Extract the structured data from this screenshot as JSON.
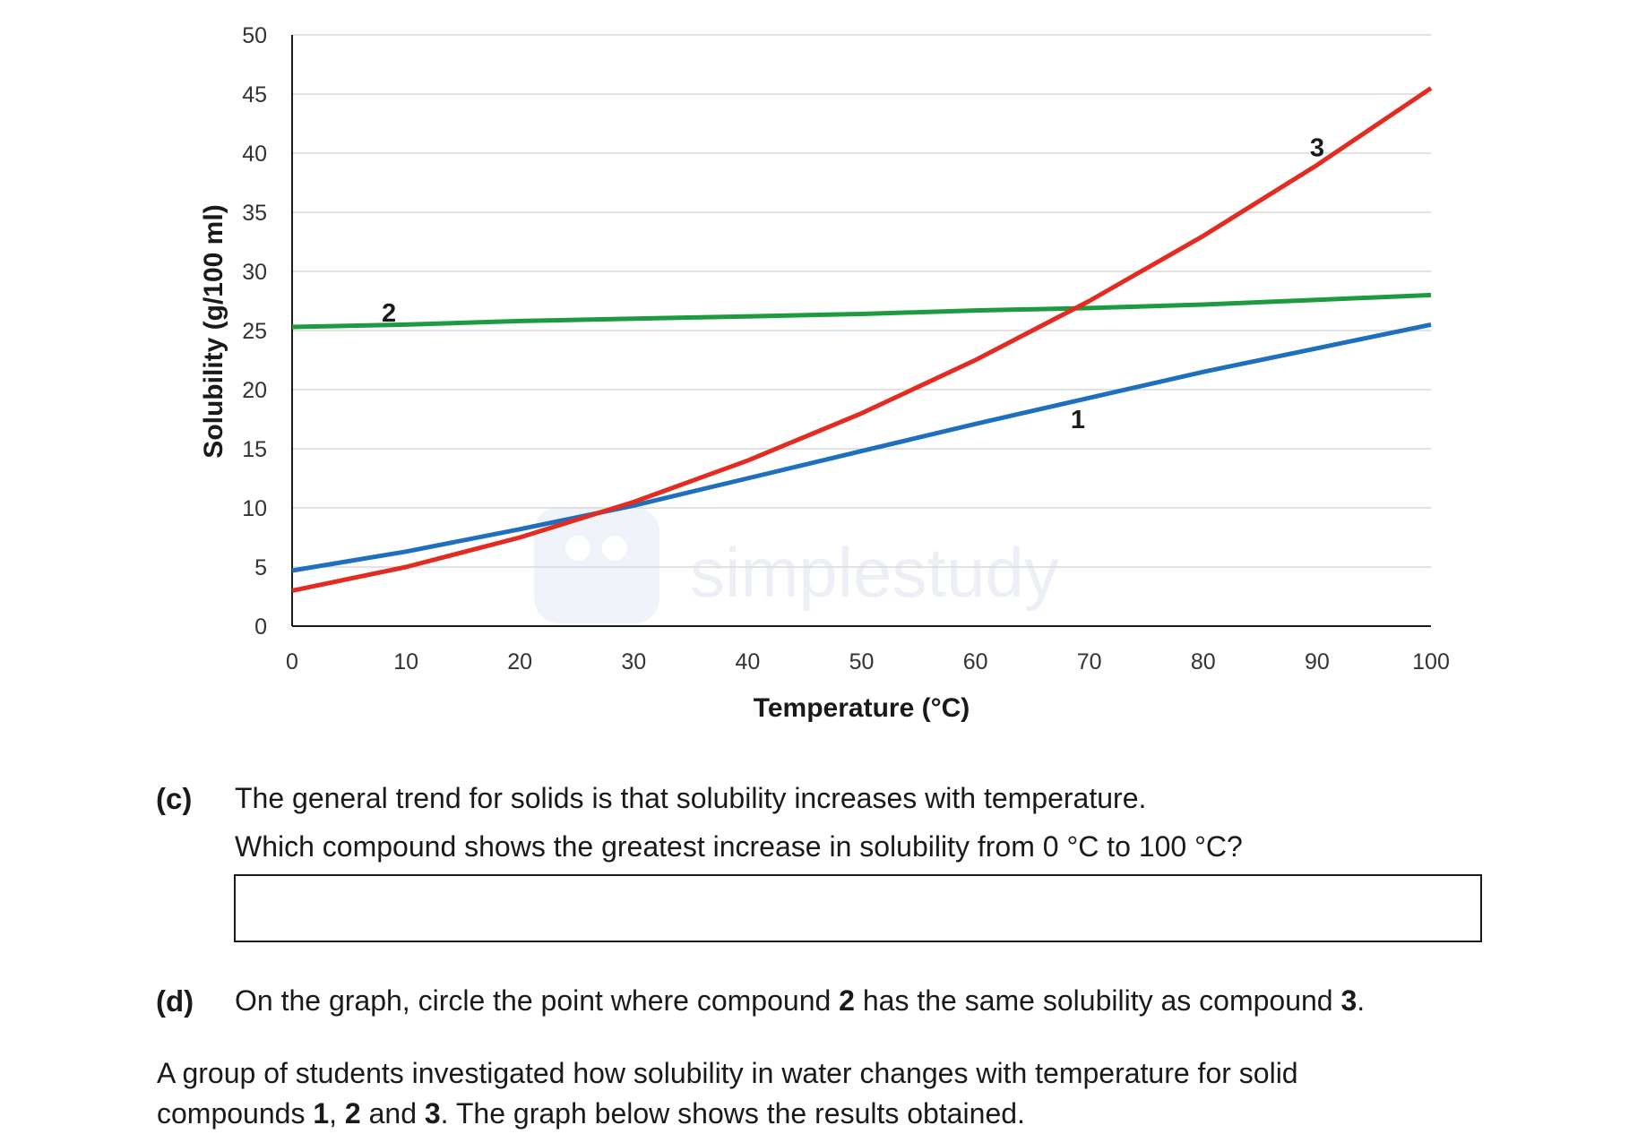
{
  "chart_data": {
    "type": "line",
    "xlabel": "Temperature (°C)",
    "ylabel": "Solubility (g/100 ml)",
    "xlim": [
      0,
      100
    ],
    "ylim": [
      0,
      50
    ],
    "xticks": [
      0,
      10,
      20,
      30,
      40,
      50,
      60,
      70,
      80,
      90,
      100
    ],
    "yticks": [
      0,
      5,
      10,
      15,
      20,
      25,
      30,
      35,
      40,
      45,
      50
    ],
    "grid": "horizontal",
    "legend": "none (series labelled on lines)",
    "series": [
      {
        "name": "1",
        "color": "#1f6fbf",
        "x": [
          0,
          10,
          20,
          30,
          40,
          50,
          60,
          70,
          80,
          90,
          100
        ],
        "y": [
          4.7,
          6.3,
          8.2,
          10.2,
          12.5,
          14.8,
          17.1,
          19.3,
          21.5,
          23.5,
          25.5
        ]
      },
      {
        "name": "2",
        "color": "#1e9a3f",
        "x": [
          0,
          10,
          20,
          30,
          40,
          50,
          60,
          70,
          80,
          90,
          100
        ],
        "y": [
          25.3,
          25.5,
          25.8,
          26.0,
          26.2,
          26.4,
          26.7,
          26.9,
          27.2,
          27.6,
          28.0
        ]
      },
      {
        "name": "3",
        "color": "#e32b22",
        "x": [
          0,
          10,
          20,
          30,
          40,
          50,
          60,
          70,
          80,
          90,
          100
        ],
        "y": [
          3.0,
          5.0,
          7.5,
          10.5,
          14.0,
          18.0,
          22.5,
          27.5,
          33.0,
          39.0,
          45.5
        ]
      }
    ],
    "series_label_positions": [
      {
        "name": "1",
        "x": 69,
        "y": 17.5
      },
      {
        "name": "2",
        "x": 8.5,
        "y": 26.5
      },
      {
        "name": "3",
        "x": 90,
        "y": 40.5
      }
    ]
  },
  "watermark": {
    "text": "simplestudy",
    "icon": "owl-logo-icon"
  },
  "question_c": {
    "label": "(c)",
    "line1": "The general trend for solids is that solubility increases with temperature.",
    "line2": "Which compound shows the greatest increase in solubility from 0 °C to 100 °C?",
    "answer_value": ""
  },
  "question_d": {
    "label": "(d)",
    "text_a": "On the graph, circle the point where compound ",
    "bold_a": "2",
    "text_b": " has the same solubility as compound ",
    "bold_b": "3",
    "text_c": "."
  },
  "intro": {
    "line1": "A group of students investigated how solubility in water changes with temperature for solid",
    "text_a": "compounds ",
    "bold_a": "1",
    "text_b": ", ",
    "bold_b": "2",
    "text_c": " and ",
    "bold_c": "3",
    "text_d": ".  The graph below shows the results obtained."
  }
}
